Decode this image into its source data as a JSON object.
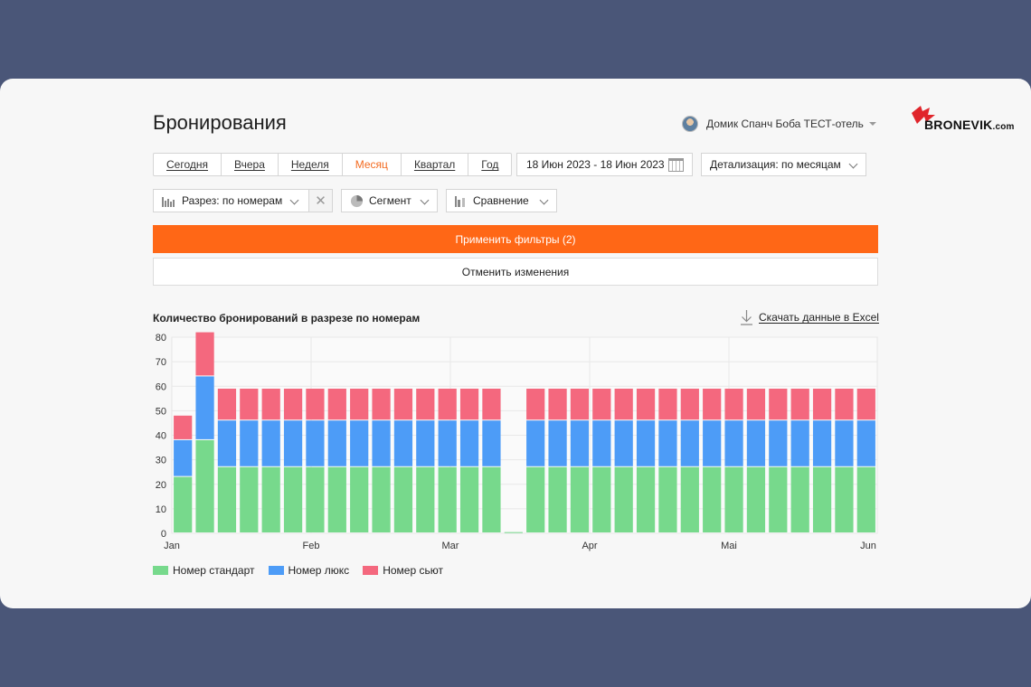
{
  "header": {
    "title": "Бронирования",
    "user_name": "Домик Спанч Боба ТЕСТ-отель",
    "logo": {
      "main": "BRONEVIK",
      "suffix": ".com",
      "brand_color": "#e0252b"
    }
  },
  "toolbar": {
    "periods": [
      {
        "label": "Сегодня",
        "active": false
      },
      {
        "label": "Вчера",
        "active": false
      },
      {
        "label": "Неделя",
        "active": false
      },
      {
        "label": "Месяц",
        "active": true
      },
      {
        "label": "Квартал",
        "active": false
      },
      {
        "label": "Год",
        "active": false
      }
    ],
    "date_range": "18 Июн 2023 - 18 Июн 2023",
    "detail": "Детализация: по месяцам"
  },
  "filters": {
    "slice": "Разрез: по номерам",
    "clear_glyph": "✕",
    "segment": "Сегмент",
    "compare": "Сравнение",
    "apply_label": "Применить фильтры (2)",
    "cancel_label": "Отменить изменения"
  },
  "chart_section": {
    "title": "Количество бронирований в разрезе по номерам",
    "download_label": "Скачать данные в Excel"
  },
  "colors": {
    "accent": "#ff6716",
    "active_tab": "#f36b21",
    "standard": "#77d98c",
    "lux": "#4d9cf7",
    "suite": "#f4687e"
  },
  "chart_data": {
    "type": "bar",
    "stacked": true,
    "ylim": [
      0,
      80
    ],
    "yticks": [
      0,
      10,
      20,
      30,
      40,
      50,
      60,
      70,
      80
    ],
    "x_tick_labels": [
      "Jan",
      "Feb",
      "Mar",
      "Apr",
      "Mai",
      "Jun"
    ],
    "grid": true,
    "legend_position": "bottom-left",
    "series": [
      {
        "name": "Номер стандарт",
        "color": "#77d98c",
        "values": [
          23,
          38,
          27,
          27,
          27,
          27,
          27,
          27,
          27,
          27,
          27,
          27,
          27,
          27,
          27,
          0.5,
          27,
          27,
          27,
          27,
          27,
          27,
          27,
          27,
          27,
          27,
          27,
          27,
          27,
          27,
          27,
          27
        ]
      },
      {
        "name": "Номер люкс",
        "color": "#4d9cf7",
        "values": [
          15,
          26,
          19,
          19,
          19,
          19,
          19,
          19,
          19,
          19,
          19,
          19,
          19,
          19,
          19,
          0,
          19,
          19,
          19,
          19,
          19,
          19,
          19,
          19,
          19,
          19,
          19,
          19,
          19,
          19,
          19,
          19
        ]
      },
      {
        "name": "Номер сьют",
        "color": "#f4687e",
        "values": [
          10,
          18,
          13,
          13,
          13,
          13,
          13,
          13,
          13,
          13,
          13,
          13,
          13,
          13,
          13,
          0,
          13,
          13,
          13,
          13,
          13,
          13,
          13,
          13,
          13,
          13,
          13,
          13,
          13,
          13,
          13,
          13
        ]
      }
    ]
  }
}
